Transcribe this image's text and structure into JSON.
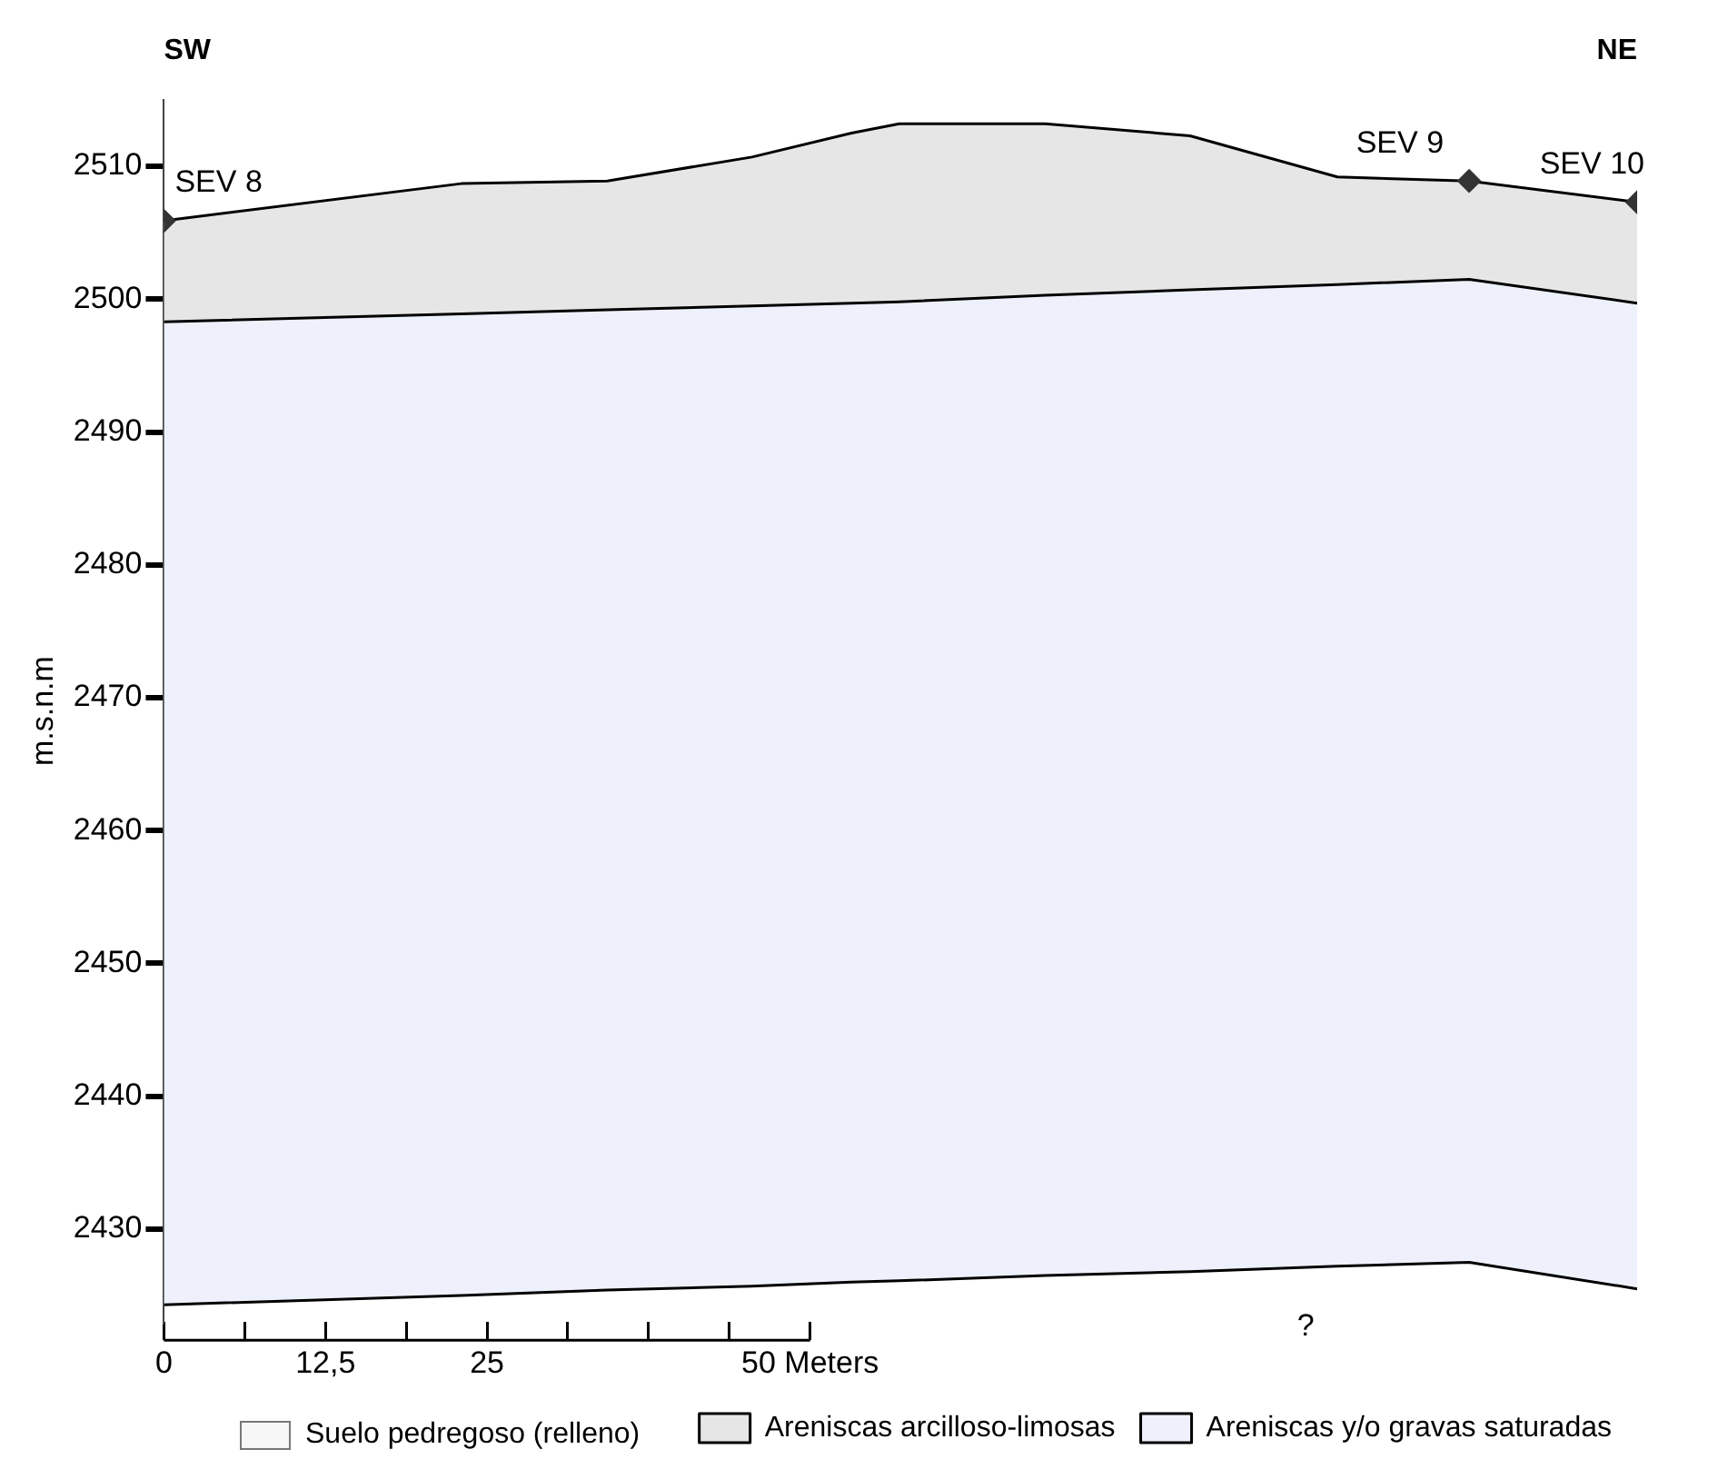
{
  "chart_data": {
    "type": "area",
    "ylabel": "m.s.n.m",
    "x": [
      0,
      23,
      34.3,
      45.5,
      53.2,
      56.9,
      68.2,
      79.4,
      90.8,
      101,
      114
    ],
    "xlim": [
      0,
      114
    ],
    "xticks": [
      0,
      {
        "value": 6.25,
        "label": null
      },
      {
        "value": 12.5,
        "label": "12,5"
      },
      {
        "value": 18.75,
        "label": null
      },
      25,
      {
        "value": 31.25,
        "label": null
      },
      {
        "value": 37.5,
        "label": null
      },
      {
        "value": 43.75,
        "label": null
      },
      {
        "value": 50,
        "label": "50 Meters"
      }
    ],
    "ylim": [
      2423,
      2515
    ],
    "yticks": [
      2430,
      2440,
      2450,
      2460,
      2470,
      2480,
      2490,
      2500,
      2510
    ],
    "grid": false,
    "legend": "bottom",
    "series": [
      {
        "type": "line",
        "color": "#000000",
        "values": [
          2424.3,
          2425.0,
          2425.4,
          2425.7,
          2426.0,
          2426.1,
          2426.5,
          2426.8,
          2427.2,
          2427.5,
          2425.5
        ]
      },
      {
        "name": "Areniscas y/o gravas saturadas",
        "color": "#eef1fb",
        "values": [
          2498.3,
          2498.9,
          2499.2,
          2499.5,
          2499.7,
          2499.8,
          2500.3,
          2500.7,
          2501.1,
          2501.5,
          2499.7
        ]
      },
      {
        "name": "Areniscas arcilloso-limosas",
        "color": "#e6e6e6",
        "values": [
          2505.9,
          2508.7,
          2508.9,
          2510.7,
          2512.5,
          2513.2,
          2513.2,
          2512.3,
          2509.2,
          2508.9,
          2507.3
        ]
      },
      {
        "type": "scatter",
        "marker": "diamond",
        "color": "#333333",
        "x": [
          0,
          101,
          114
        ],
        "values": [
          2505.9,
          2508.9,
          2507.3
        ]
      }
    ],
    "annotations": [
      "SW",
      "NE",
      "?",
      "Suelo pedregoso (relleno)",
      {
        "text": "SEV 8",
        "x": 0,
        "y": 2505.9
      },
      {
        "text": "SEV 9",
        "x": 101,
        "y": 2508.9
      },
      {
        "text": "SEV 10",
        "x": 114,
        "y": 2507.3
      }
    ]
  }
}
